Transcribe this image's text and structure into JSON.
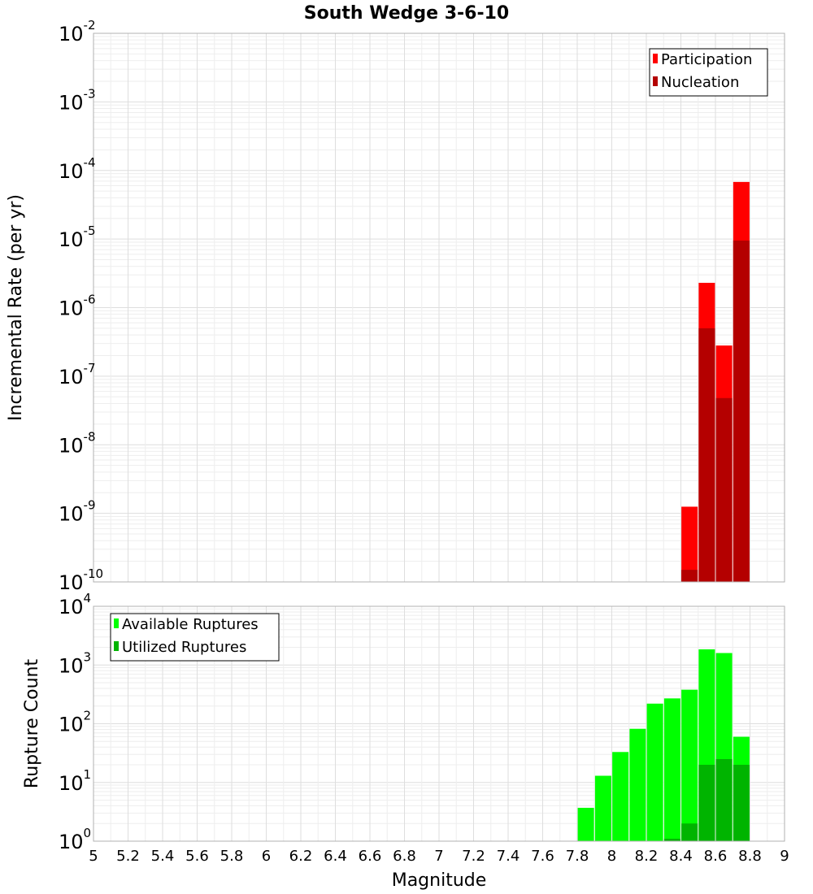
{
  "chart_data": [
    {
      "type": "bar",
      "title": "South Wedge 3-6-10",
      "xlabel": "Magnitude",
      "ylabel": "Incremental Rate (per yr)",
      "yscale": "log",
      "ylim_exp": [
        -10,
        -2
      ],
      "xlim": [
        5,
        9
      ],
      "x_ticks": [
        "5",
        "5.2",
        "5.4",
        "5.6",
        "5.8",
        "6",
        "6.2",
        "6.4",
        "6.6",
        "6.8",
        "7",
        "7.2",
        "7.4",
        "7.6",
        "7.8",
        "8",
        "8.2",
        "8.4",
        "8.6",
        "8.8",
        "9"
      ],
      "legend_position": "top-right",
      "categories": [
        8.45,
        8.55,
        8.65,
        8.75
      ],
      "series": [
        {
          "name": "Participation",
          "color": "#ff0000",
          "values": [
            1.25e-09,
            2.3e-06,
            2.8e-07,
            6.8e-05
          ]
        },
        {
          "name": "Nucleation",
          "color": "#b40000",
          "values": [
            1.5e-10,
            5e-07,
            4.8e-08,
            9.5e-06
          ]
        }
      ]
    },
    {
      "type": "bar",
      "title": "",
      "xlabel": "Magnitude",
      "ylabel": "Rupture Count",
      "yscale": "log",
      "ylim_exp": [
        0,
        4
      ],
      "xlim": [
        5,
        9
      ],
      "legend_position": "top-left",
      "categories": [
        7.85,
        7.95,
        8.05,
        8.15,
        8.25,
        8.35,
        8.45,
        8.55,
        8.65,
        8.75
      ],
      "series": [
        {
          "name": "Available Ruptures",
          "color": "#00ff00",
          "values": [
            3.7,
            13,
            33,
            82,
            220,
            270,
            380,
            1850,
            1600,
            60
          ]
        },
        {
          "name": "Utilized Ruptures",
          "color": "#00b400",
          "values": [
            0,
            0,
            0,
            0,
            0,
            1.1,
            2,
            20,
            25,
            20
          ]
        }
      ]
    }
  ]
}
